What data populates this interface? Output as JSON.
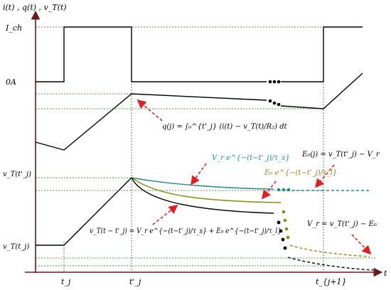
{
  "axes": {
    "y_label": "i(t) , q(t) , v_T(t)",
    "x_label": "t"
  },
  "y_ticks": {
    "ich": "I_ch",
    "zero": "0A",
    "vt_tj_prime": "v_T(t'_j)",
    "vt_tj": "v_T(t_j)"
  },
  "x_ticks": {
    "tj": "t_j",
    "tj_prime": "t'_j",
    "tj1": "t_{j+1}"
  },
  "annotations": {
    "q_formula": "q(j) = ∫₀^{t'_j} (i(t) − v_T(t)/R₂) dt",
    "teal_exp": "V_r e^{−(t−t'_j)/τ_s}",
    "olive_exp": "E₀ e^{−(t−t'_j)/τ_l}",
    "e0_def": "E₀(j) = v_T(t'_j) − V_r",
    "vt_formula": "v_T(t − t'_j) = V_r e^{−(t−t'_j)/τ_s} + E₀ e^{−(t−t'_j)/τ_l}",
    "vr_def": "V_r = v_T(t'_j) − E₀"
  },
  "colors": {
    "axis": "#6b1a1a",
    "grid": "#2a6e2a",
    "teal": "#1f8a8a",
    "olive": "#8a8a10",
    "arrow": "#e02020"
  }
}
